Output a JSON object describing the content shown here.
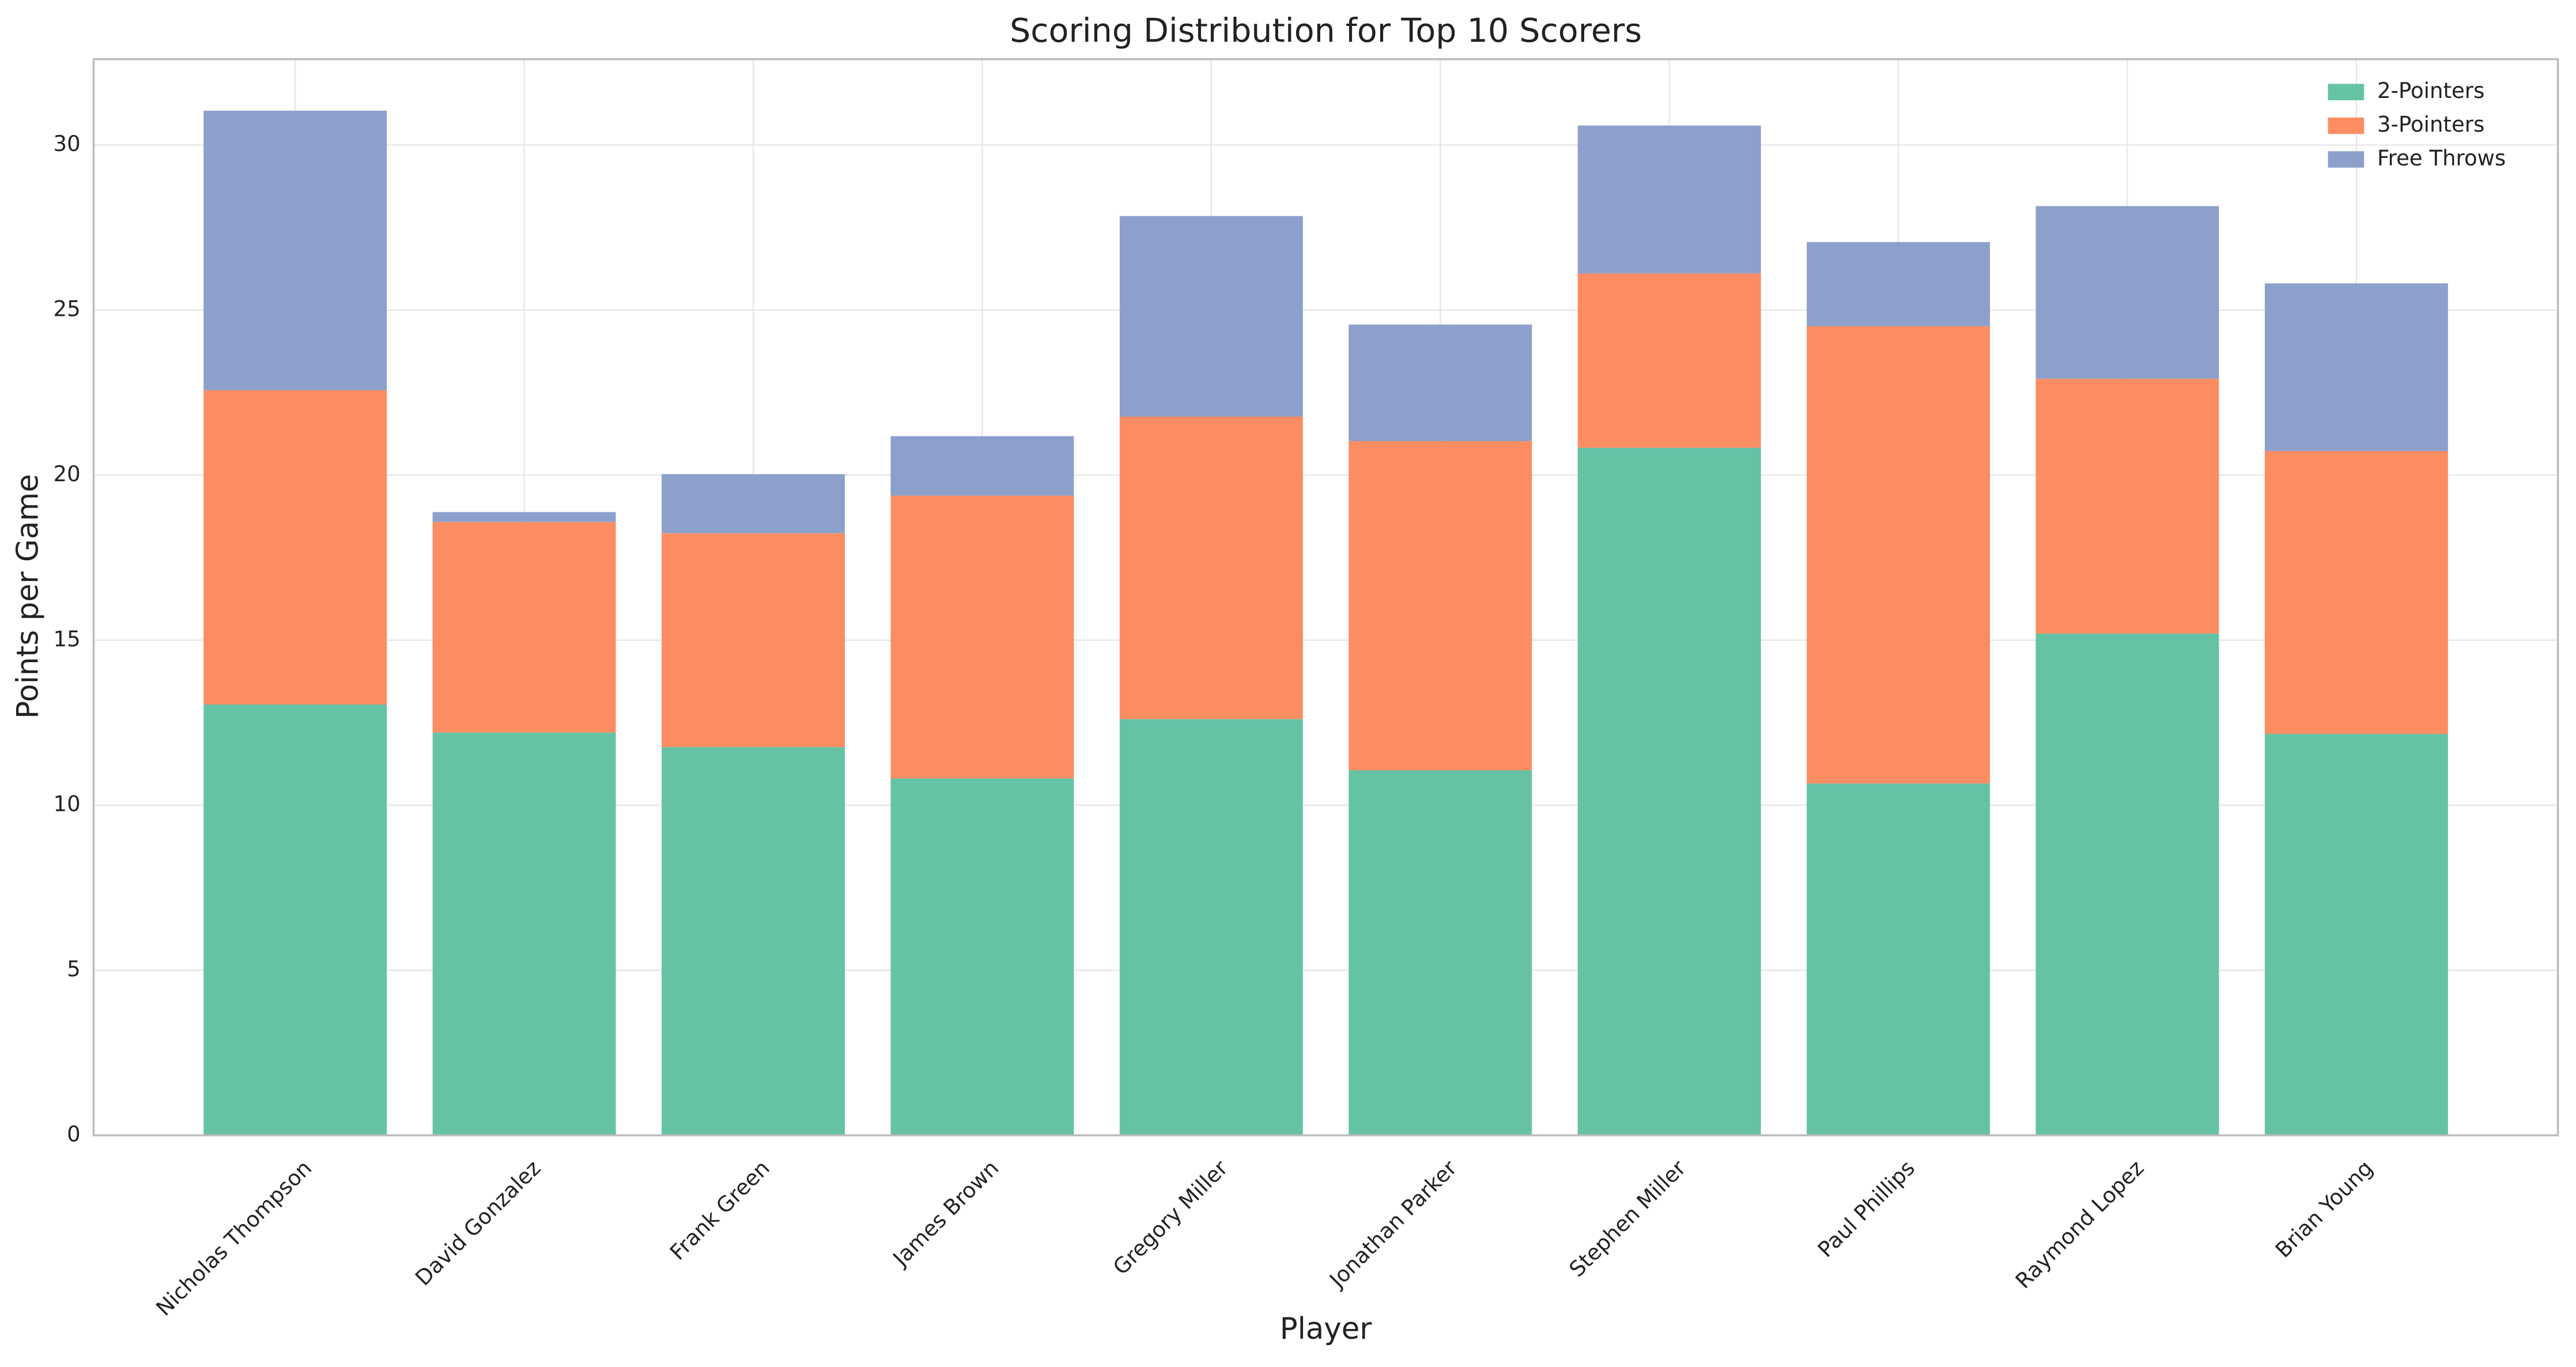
{
  "chart_data": {
    "type": "stacked_bar",
    "title": "Scoring Distribution for Top 10 Scorers",
    "x_label": "Player",
    "y_label": "Points per Game",
    "categories": [
      "Nicholas Thompson",
      "David Gonzalez",
      "Frank Green",
      "James Brown",
      "Gregory Miller",
      "Jonathan Parker",
      "Stephen Miller",
      "Paul Phillips",
      "Raymond Lopez",
      "Brian Young"
    ],
    "series": [
      {
        "name": "2-Pointers",
        "color": "#66c2a5",
        "values": [
          13.05,
          12.2,
          11.76,
          10.81,
          12.61,
          11.06,
          20.83,
          10.66,
          15.2,
          12.16
        ]
      },
      {
        "name": "3-Pointers",
        "color": "#fc8d62",
        "values": [
          9.52,
          6.38,
          6.48,
          8.57,
          9.16,
          9.97,
          5.28,
          13.85,
          7.72,
          8.57
        ]
      },
      {
        "name": "Free Throws",
        "color": "#8da0cb",
        "values": [
          8.47,
          0.3,
          1.79,
          1.8,
          6.08,
          3.53,
          4.48,
          2.55,
          5.23,
          5.08
        ]
      }
    ],
    "ylim": [
      0,
      32.6
    ],
    "yticks": [
      0,
      5,
      10,
      15,
      20,
      25,
      30
    ],
    "grid": true,
    "legend": "upper right"
  }
}
